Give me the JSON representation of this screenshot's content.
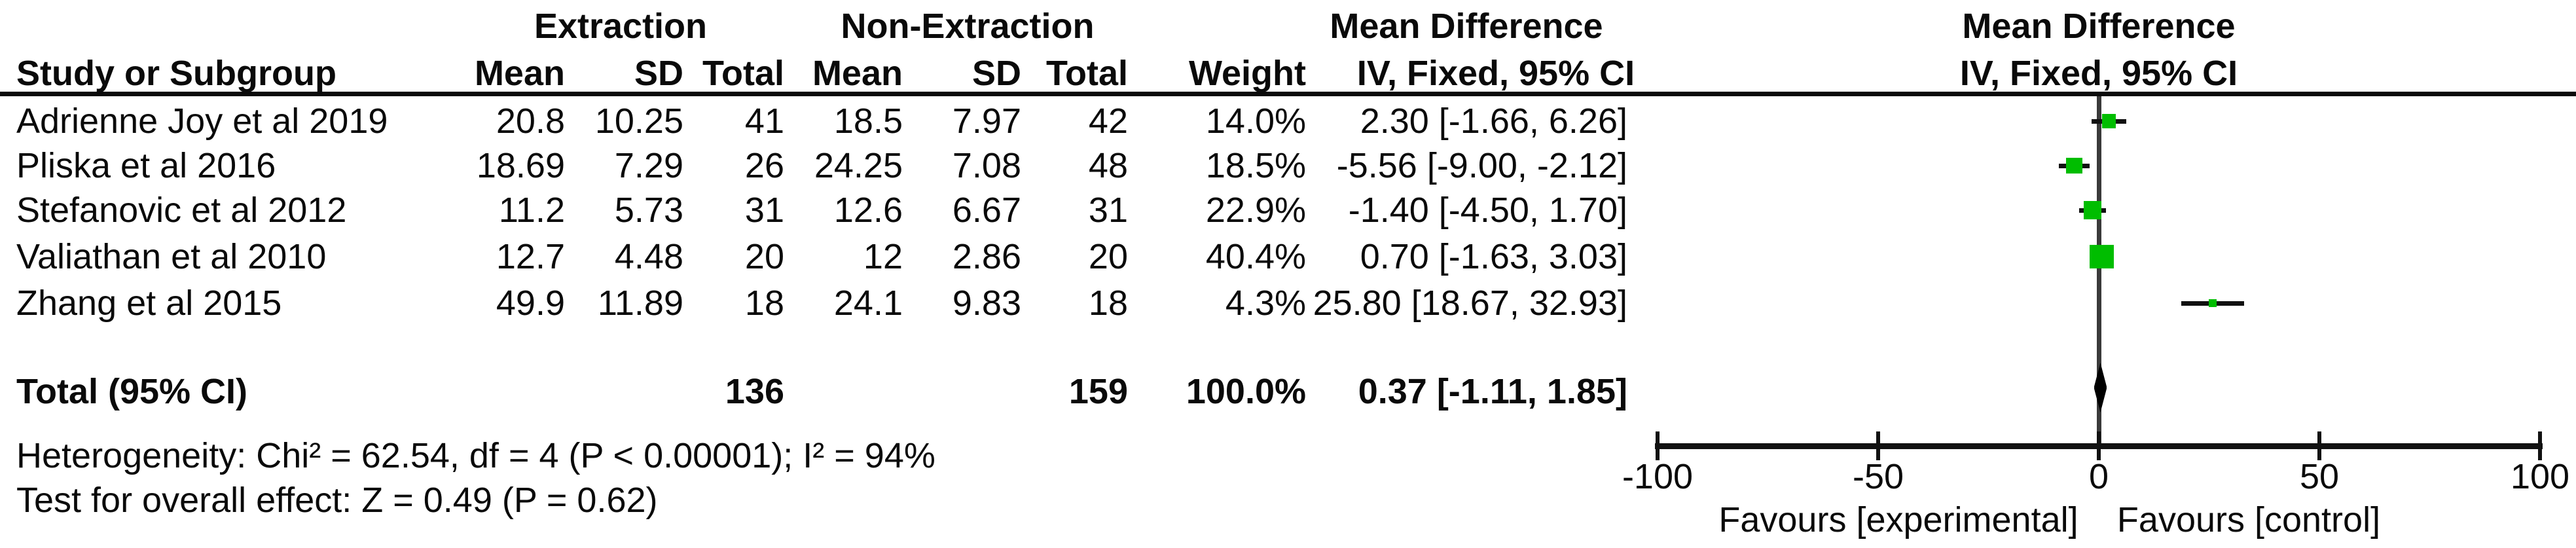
{
  "header": {
    "group_experimental": "Extraction",
    "group_control": "Non-Extraction",
    "effect_col_title": "Mean Difference",
    "effect_col_sub": "IV, Fixed, 95% CI",
    "plot_title": "Mean Difference",
    "plot_sub": "IV, Fixed, 95% CI",
    "study": "Study or Subgroup",
    "mean": "Mean",
    "sd": "SD",
    "total": "Total",
    "weight": "Weight"
  },
  "chart_data": {
    "type": "forest",
    "effect_measure": "Mean Difference",
    "method": "IV, Fixed, 95% CI",
    "studies": [
      {
        "name": "Adrienne Joy et al 2019",
        "mean_e": "20.8",
        "sd_e": "10.25",
        "n_e": "41",
        "mean_c": "18.5",
        "sd_c": "7.97",
        "n_c": "42",
        "weight": "14.0%",
        "weight_pct": 14.0,
        "md": 2.3,
        "lo": -1.66,
        "hi": 6.26,
        "ci_label": "2.30 [-1.66, 6.26]"
      },
      {
        "name": "Pliska et al 2016",
        "mean_e": "18.69",
        "sd_e": "7.29",
        "n_e": "26",
        "mean_c": "24.25",
        "sd_c": "7.08",
        "n_c": "48",
        "weight": "18.5%",
        "weight_pct": 18.5,
        "md": -5.56,
        "lo": -9.0,
        "hi": -2.12,
        "ci_label": "-5.56 [-9.00, -2.12]"
      },
      {
        "name": "Stefanovic et al 2012",
        "mean_e": "11.2",
        "sd_e": "5.73",
        "n_e": "31",
        "mean_c": "12.6",
        "sd_c": "6.67",
        "n_c": "31",
        "weight": "22.9%",
        "weight_pct": 22.9,
        "md": -1.4,
        "lo": -4.5,
        "hi": 1.7,
        "ci_label": "-1.40 [-4.50, 1.70]"
      },
      {
        "name": "Valiathan et al 2010",
        "mean_e": "12.7",
        "sd_e": "4.48",
        "n_e": "20",
        "mean_c": "12",
        "sd_c": "2.86",
        "n_c": "20",
        "weight": "40.4%",
        "weight_pct": 40.4,
        "md": 0.7,
        "lo": -1.63,
        "hi": 3.03,
        "ci_label": "0.70 [-1.63, 3.03]"
      },
      {
        "name": "Zhang et al 2015",
        "mean_e": "49.9",
        "sd_e": "11.89",
        "n_e": "18",
        "mean_c": "24.1",
        "sd_c": "9.83",
        "n_c": "18",
        "weight": "4.3%",
        "weight_pct": 4.3,
        "md": 25.8,
        "lo": 18.67,
        "hi": 32.93,
        "ci_label": "25.80 [18.67, 32.93]"
      }
    ],
    "total": {
      "label": "Total (95% CI)",
      "n_e": "136",
      "n_c": "159",
      "weight": "100.0%",
      "md": 0.37,
      "lo": -1.11,
      "hi": 1.85,
      "ci_label": "0.37 [-1.11, 1.85]"
    },
    "heterogeneity": "Heterogeneity: Chi² = 62.54, df = 4 (P < 0.00001); I² = 94%",
    "overall_effect": "Test for overall effect: Z = 0.49 (P = 0.62)",
    "axis": {
      "min": -100,
      "max": 100,
      "ticks": [
        -100,
        -50,
        0,
        50,
        100
      ]
    },
    "favours_left": "Favours [experimental]",
    "favours_right": "Favours [control]",
    "colors": {
      "marker": "#00bd00",
      "diamond": "#000000",
      "line": "#111111",
      "zero_line": "#3a3a3a"
    }
  }
}
